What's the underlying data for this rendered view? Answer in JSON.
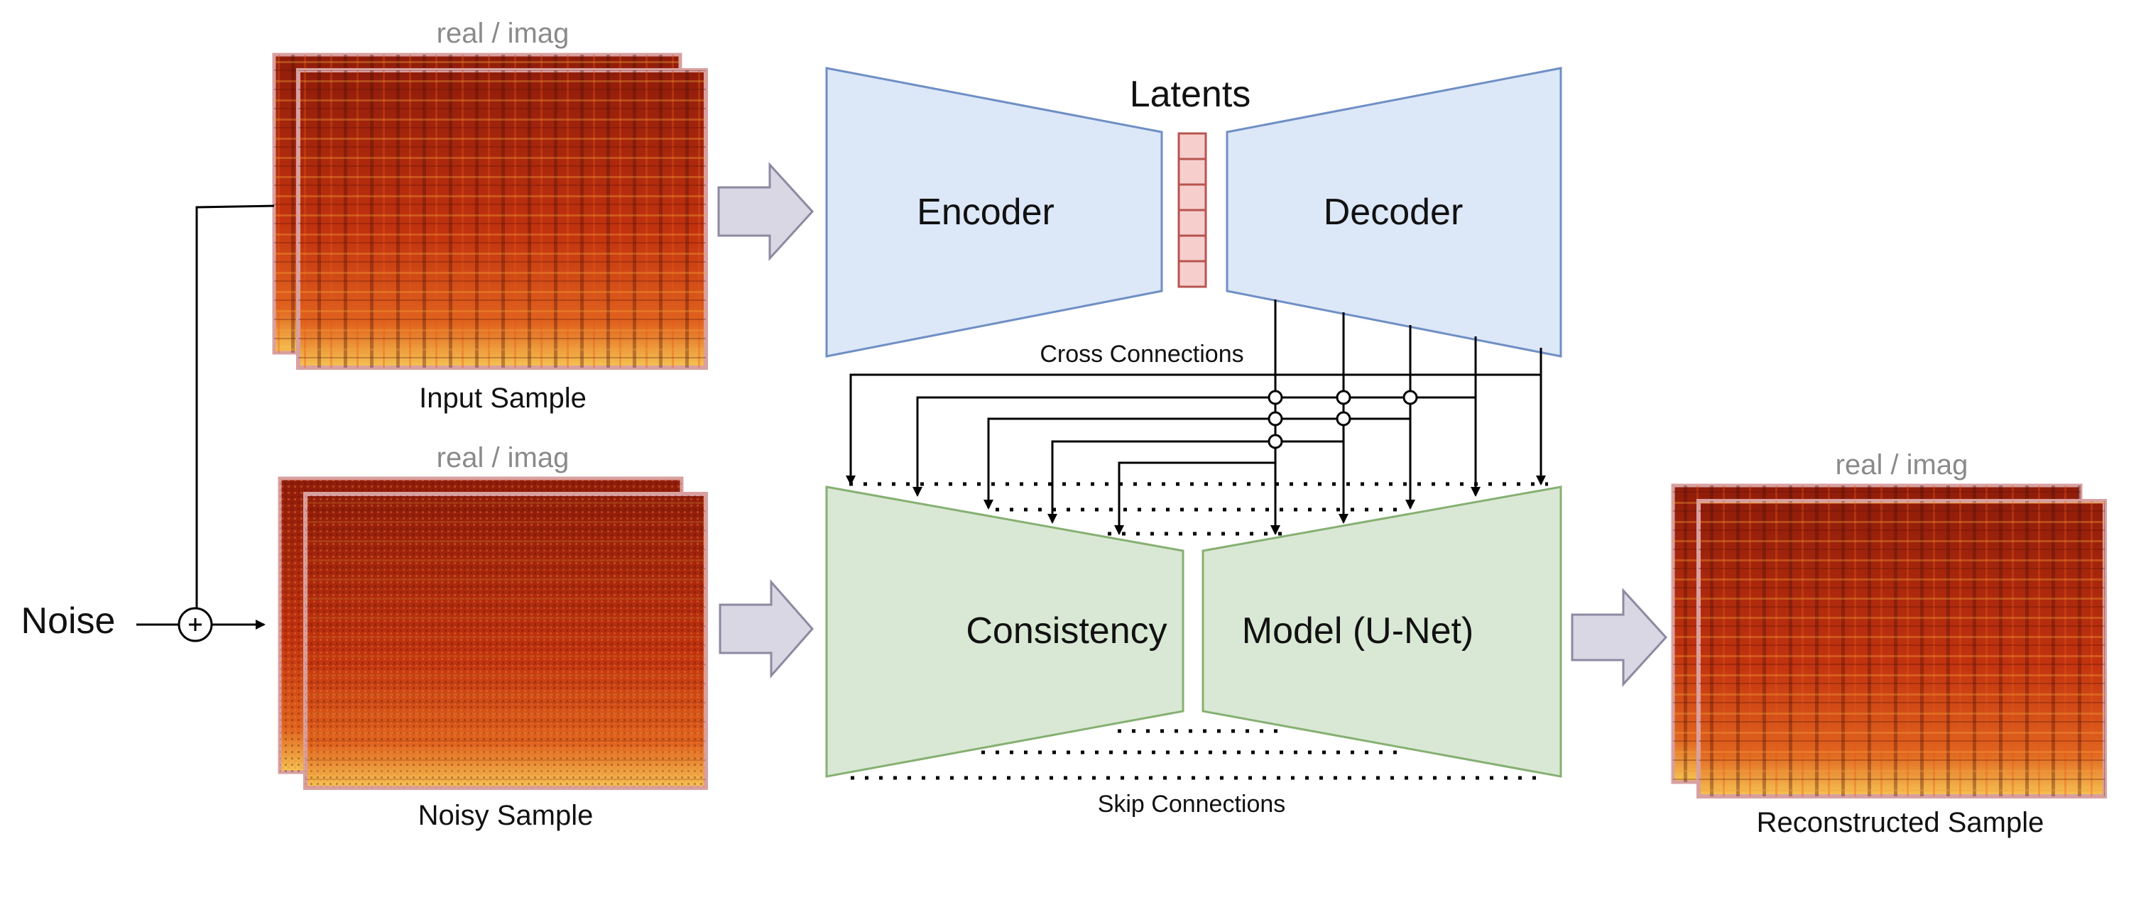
{
  "diagram": {
    "input_block": {
      "channel_label": "real / imag",
      "caption": "Input Sample"
    },
    "noisy_block": {
      "channel_label": "real / imag",
      "caption": "Noisy Sample"
    },
    "output_block": {
      "channel_label": "real / imag",
      "caption": "Reconstructed Sample"
    },
    "noise_label": "Noise",
    "autoencoder": {
      "encoder_label": "Encoder",
      "decoder_label": "Decoder",
      "latents_label": "Latents",
      "latent_cells": 6
    },
    "unet": {
      "left_label": "Consistency",
      "right_label": "Model (U-Net)"
    },
    "cross_connections_label": "Cross Connections",
    "skip_connections_label": "Skip Connections",
    "colors": {
      "autoencoder_fill": "#dce7f8",
      "autoencoder_stroke": "#6f8fc4",
      "unet_fill": "#d9e8d4",
      "unet_stroke": "#86b072",
      "latent_fill": "#f6cfcd",
      "latent_stroke": "#b85450",
      "arrow_fill": "#d9d7e4",
      "arrow_stroke": "#8c8aa0",
      "spectrogram_base": "#b8280c",
      "spectrogram_border": "#d9a0a0"
    }
  }
}
